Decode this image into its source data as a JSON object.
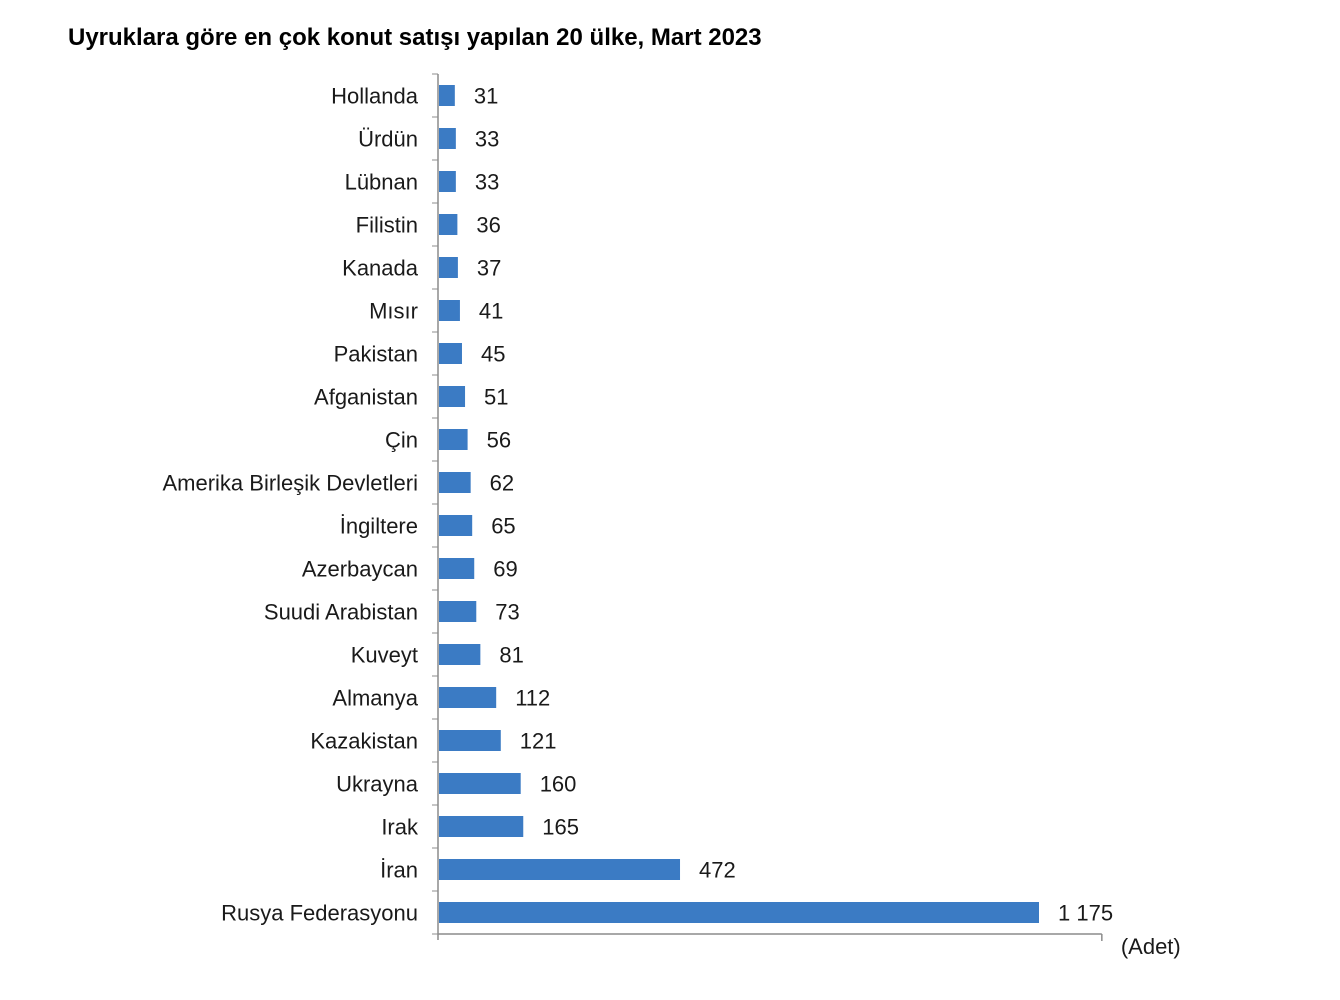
{
  "chart_data": {
    "type": "bar",
    "orientation": "horizontal",
    "title": "Uyruklara göre en çok konut satışı yapılan 20 ülke, Mart 2023",
    "unit_label": "(Adet)",
    "color": "#3b7bc4",
    "categories": [
      "Hollanda",
      "Ürdün",
      "Lübnan",
      "Filistin",
      "Kanada",
      "Mısır",
      "Pakistan",
      "Afganistan",
      "Çin",
      "Amerika Birleşik Devletleri",
      "İngiltere",
      "Azerbaycan",
      "Suudi Arabistan",
      "Kuveyt",
      "Almanya",
      "Kazakistan",
      "Ukrayna",
      "Irak",
      "İran",
      "Rusya Federasyonu"
    ],
    "values": [
      31,
      33,
      33,
      36,
      37,
      41,
      45,
      51,
      56,
      62,
      65,
      69,
      73,
      81,
      112,
      121,
      160,
      165,
      472,
      1175
    ],
    "value_labels": [
      "31",
      "33",
      "33",
      "36",
      "37",
      "41",
      "45",
      "51",
      "56",
      "62",
      "65",
      "69",
      "73",
      "81",
      "112",
      "121",
      "160",
      "165",
      "472",
      "1 175"
    ],
    "xlim": [
      0,
      1300
    ],
    "grid": false,
    "legend": "none"
  }
}
